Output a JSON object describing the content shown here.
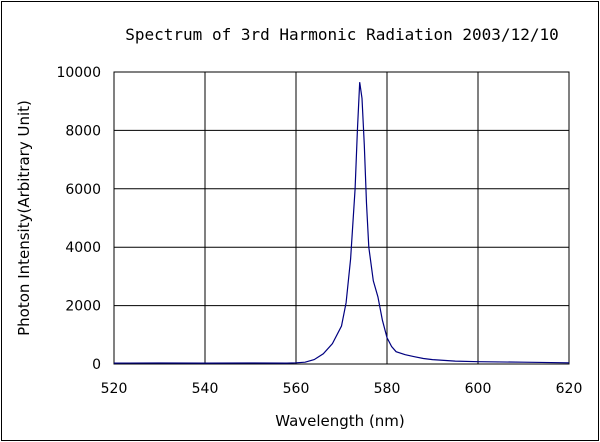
{
  "chart_data": {
    "type": "line",
    "title": "Spectrum of 3rd Harmonic Radiation 2003/12/10",
    "xlabel": "Wavelength (nm)",
    "ylabel": "Photon Intensity(Arbitrary Unit)",
    "xlim": [
      520,
      620
    ],
    "ylim": [
      0,
      10000
    ],
    "x_ticks": [
      "520",
      "540",
      "560",
      "580",
      "600",
      "620"
    ],
    "y_ticks": [
      "0",
      "2000",
      "4000",
      "6000",
      "8000",
      "10000"
    ],
    "grid": true,
    "legend": "none",
    "series": [
      {
        "color": "#000080",
        "x": [
          520,
          530,
          540,
          550,
          558,
          560,
          562,
          564,
          566,
          568,
          570,
          571,
          572,
          573,
          573.5,
          574,
          574.5,
          575,
          575.5,
          576,
          577,
          578,
          579,
          580,
          581,
          582,
          584,
          586,
          588,
          590,
          595,
          600,
          610,
          620
        ],
        "y": [
          30,
          35,
          30,
          35,
          30,
          40,
          60,
          150,
          350,
          700,
          1300,
          2100,
          3600,
          6000,
          8000,
          9650,
          9100,
          7500,
          5500,
          4000,
          2850,
          2300,
          1500,
          900,
          600,
          420,
          320,
          250,
          190,
          150,
          100,
          80,
          60,
          40
        ]
      }
    ]
  }
}
